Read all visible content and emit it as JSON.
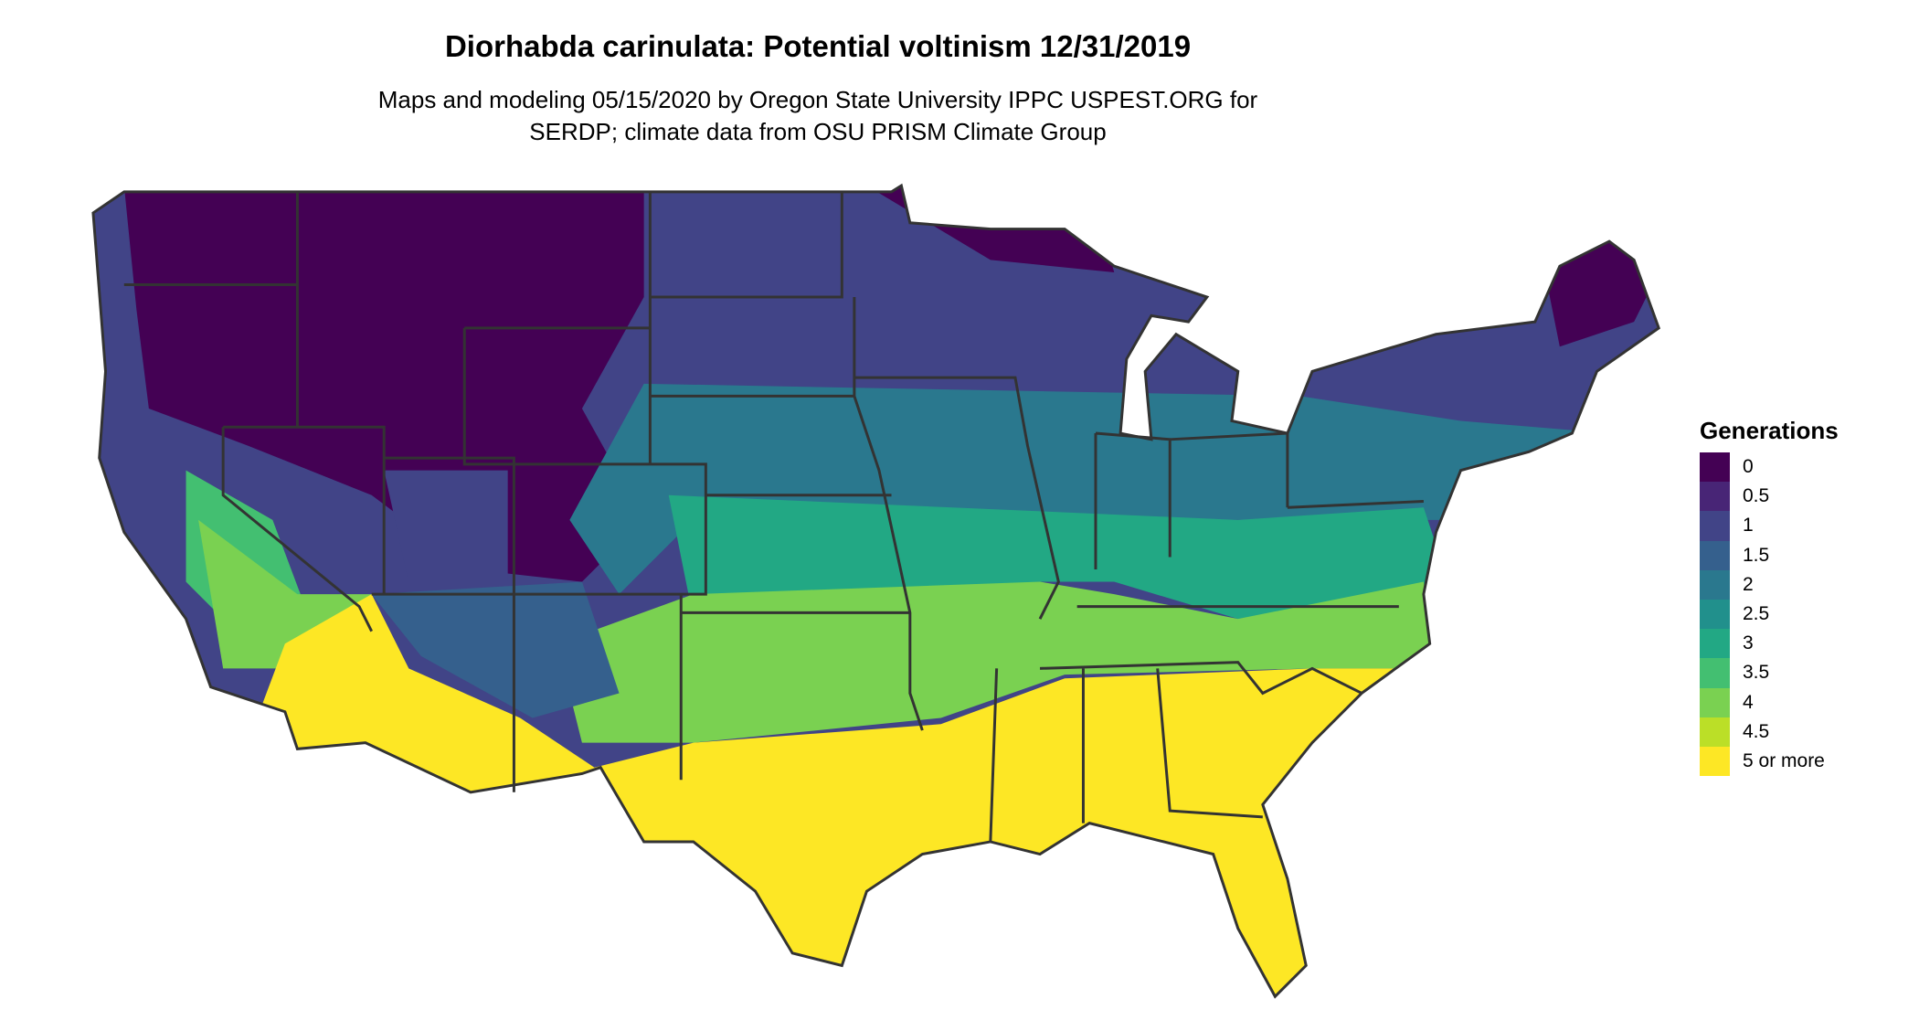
{
  "title": "Diorhabda carinulata: Potential voltinism 12/31/2019",
  "subtitle_line1": "Maps and modeling 05/15/2020 by Oregon State University IPPC USPEST.ORG for",
  "subtitle_line2": "SERDP; climate data from OSU PRISM Climate Group",
  "chart_data": {
    "type": "heatmap",
    "title": "Diorhabda carinulata: Potential voltinism 12/31/2019",
    "region": "Contiguous United States",
    "legend": {
      "title": "Generations",
      "placement": "right",
      "items": [
        {
          "label": "0",
          "color": "#440154"
        },
        {
          "label": "0.5",
          "color": "#482576"
        },
        {
          "label": "1",
          "color": "#414487"
        },
        {
          "label": "1.5",
          "color": "#35608D"
        },
        {
          "label": "2",
          "color": "#2A788E"
        },
        {
          "label": "2.5",
          "color": "#21908C"
        },
        {
          "label": "3",
          "color": "#22A884"
        },
        {
          "label": "3.5",
          "color": "#43BF71"
        },
        {
          "label": "4",
          "color": "#7AD151"
        },
        {
          "label": "4.5",
          "color": "#BBDF27"
        },
        {
          "label": "5 or more",
          "color": "#FDE725"
        }
      ]
    }
  }
}
